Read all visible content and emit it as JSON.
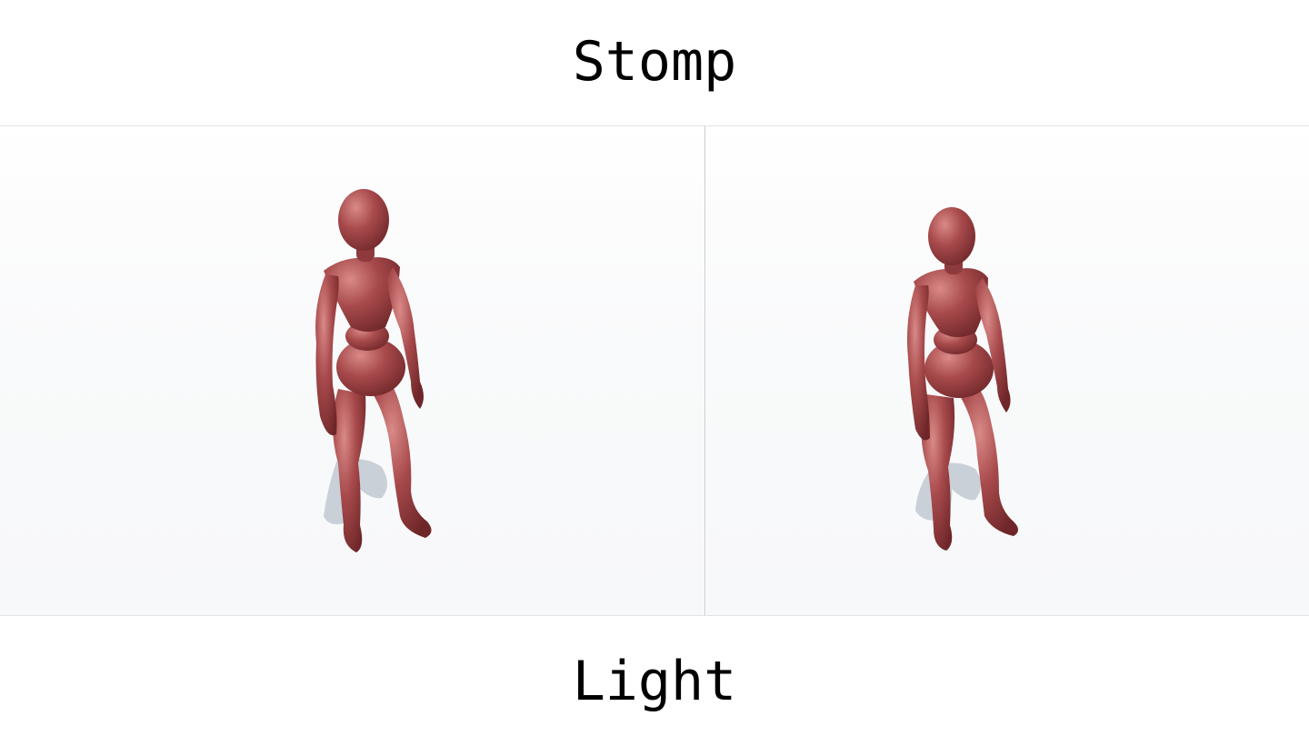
{
  "header": {
    "title": "Stomp"
  },
  "footer": {
    "caption": "Light"
  },
  "scene": {
    "panels": [
      {
        "figure_color": "#a84a4c",
        "shadow_color": "#c9d0d8"
      },
      {
        "figure_color": "#a84a4c",
        "shadow_color": "#c9d0d8"
      }
    ]
  }
}
